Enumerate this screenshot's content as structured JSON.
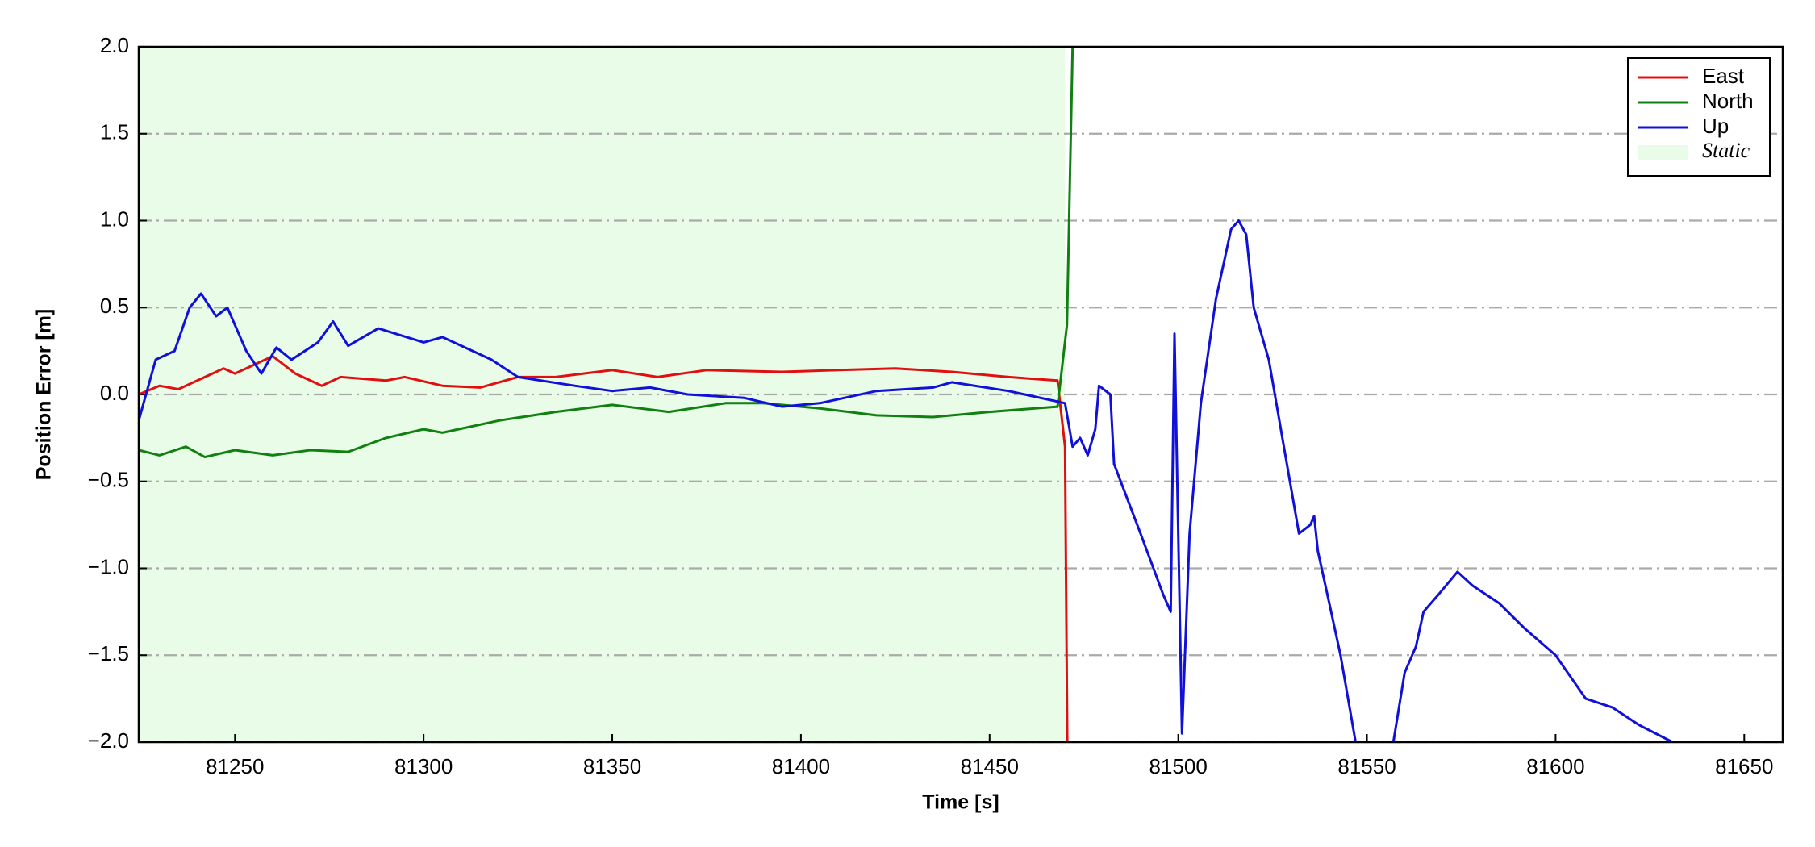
{
  "chart_data": {
    "type": "line",
    "xlabel": "Time [s]",
    "ylabel": "Position Error [m]",
    "xlim": [
      81224.5,
      81660.2
    ],
    "xticks": [
      81250,
      81300,
      81350,
      81400,
      81450,
      81500,
      81550,
      81600,
      81650
    ],
    "ylim": [
      -2.0,
      2.0
    ],
    "yticks": [
      {
        "value": -2.0,
        "label": "−2.0"
      },
      {
        "value": -1.5,
        "label": "−1.5"
      },
      {
        "value": -1.0,
        "label": "−1.0"
      },
      {
        "value": -0.5,
        "label": "−0.5"
      },
      {
        "value": 0,
        "label": "0.0"
      },
      {
        "value": 0.5,
        "label": "0.5"
      },
      {
        "value": 1,
        "label": "1.0"
      },
      {
        "value": 1.5,
        "label": "1.5"
      },
      {
        "value": 2,
        "label": "2.0"
      }
    ],
    "grid": true,
    "legend": "upper right",
    "shaded_regions": [
      {
        "name": "Static",
        "color": "#e8fce8",
        "x": [
          81224.5,
          81470
        ]
      }
    ],
    "series": [
      {
        "name": "East",
        "color": "#e01010",
        "x": [
          81224.5,
          81230,
          81235,
          81240,
          81247,
          81250,
          81258,
          81260,
          81266,
          81273,
          81278,
          81290,
          81295,
          81305,
          81315,
          81325,
          81335,
          81350,
          81362,
          81375,
          81395,
          81410,
          81425,
          81440,
          81455,
          81468,
          81470,
          81470.6
        ],
        "values": [
          0,
          0.05,
          0.03,
          0.08,
          0.15,
          0.12,
          0.2,
          0.22,
          0.12,
          0.05,
          0.1,
          0.08,
          0.1,
          0.05,
          0.04,
          0.1,
          0.1,
          0.14,
          0.1,
          0.14,
          0.13,
          0.14,
          0.15,
          0.13,
          0.1,
          0.08,
          -0.3,
          -2.0
        ]
      },
      {
        "name": "North",
        "color": "#108010",
        "x": [
          81224.5,
          81230,
          81237,
          81242,
          81250,
          81260,
          81270,
          81280,
          81290,
          81300,
          81305,
          81320,
          81335,
          81350,
          81365,
          81380,
          81390,
          81405,
          81420,
          81435,
          81450,
          81468,
          81470.5,
          81472
        ],
        "values": [
          -0.32,
          -0.35,
          -0.3,
          -0.36,
          -0.32,
          -0.35,
          -0.32,
          -0.33,
          -0.25,
          -0.2,
          -0.22,
          -0.15,
          -0.1,
          -0.06,
          -0.1,
          -0.05,
          -0.05,
          -0.08,
          -0.12,
          -0.13,
          -0.1,
          -0.07,
          0.4,
          2.0
        ]
      },
      {
        "name": "Up",
        "color": "#1010d8",
        "x": [
          81224.5,
          81229,
          81234,
          81238,
          81241,
          81245,
          81248,
          81253,
          81257,
          81261,
          81265,
          81272,
          81276,
          81280,
          81288,
          81300,
          81305,
          81318,
          81325,
          81340,
          81350,
          81360,
          81370,
          81385,
          81395,
          81405,
          81420,
          81435,
          81440,
          81455,
          81470,
          81472,
          81474,
          81476,
          81478,
          81479,
          81482,
          81483,
          81490,
          81496,
          81498,
          81499,
          81501,
          81503,
          81506,
          81510,
          81512,
          81514,
          81516,
          81518,
          81520,
          81524,
          81528,
          81532,
          81535,
          81536,
          81537,
          81540,
          81543,
          81547,
          81552,
          81557,
          81560,
          81563,
          81565,
          81569,
          81574,
          81578,
          81585,
          81592,
          81600,
          81608,
          81615,
          81622,
          81631
        ],
        "values": [
          -0.15,
          0.2,
          0.25,
          0.5,
          0.58,
          0.45,
          0.5,
          0.25,
          0.12,
          0.27,
          0.2,
          0.3,
          0.42,
          0.28,
          0.38,
          0.3,
          0.33,
          0.2,
          0.1,
          0.05,
          0.02,
          0.04,
          0.0,
          -0.02,
          -0.07,
          -0.05,
          0.02,
          0.04,
          0.07,
          0.02,
          -0.05,
          -0.3,
          -0.25,
          -0.35,
          -0.2,
          0.05,
          0.0,
          -0.4,
          -0.8,
          -1.15,
          -1.25,
          0.35,
          -1.95,
          -0.8,
          -0.05,
          0.55,
          0.75,
          0.95,
          1.0,
          0.92,
          0.5,
          0.2,
          -0.3,
          -0.8,
          -0.75,
          -0.7,
          -0.9,
          -1.2,
          -1.5,
          -2.0,
          null,
          -2.0,
          -1.6,
          -1.45,
          -1.25,
          -1.15,
          -1.02,
          -1.1,
          -1.2,
          -1.35,
          -1.5,
          -1.75,
          -1.8,
          -1.9,
          -2.0
        ]
      }
    ]
  }
}
